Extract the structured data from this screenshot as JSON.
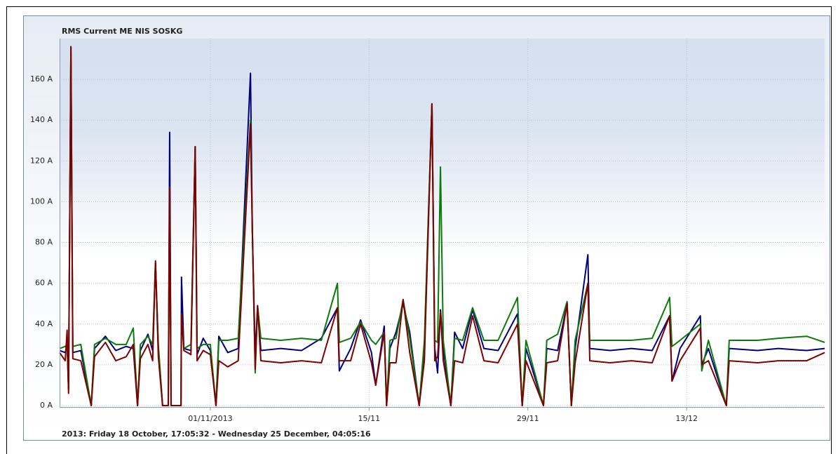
{
  "chart_data": {
    "type": "line",
    "title": "RMS Current ME NIS SOSKG",
    "footer": "2013: Friday 18 October, 17:05:32 - Wednesday 25 December, 04:05:16",
    "x": [
      "2013-10-18T17:05",
      "2013-10-19T05:00",
      "2013-10-19T09:00",
      "2013-10-19T12:00",
      "2013-10-19T17:00",
      "2013-10-19T21:00",
      "2013-10-20T14:00",
      "2013-10-21T12:00",
      "2013-10-21T19:00",
      "2013-10-22T18:00",
      "2013-10-23T16:00",
      "2013-10-24T14:00",
      "2013-10-25T05:00",
      "2013-10-25T14:00",
      "2013-10-25T20:00",
      "2013-10-26T12:00",
      "2013-10-26T22:00",
      "2013-10-27T04:00",
      "2013-10-27T10:00",
      "2013-10-27T19:00",
      "2013-10-28T07:00",
      "2013-10-28T10:00",
      "2013-10-28T13:00",
      "2013-10-29T10:00",
      "2013-10-29T11:00",
      "2013-10-29T16:00",
      "2013-10-30T07:00",
      "2013-10-30T16:00",
      "2013-10-30T20:00",
      "2013-10-31T09:00",
      "2013-11-01T00:00",
      "2013-11-01T12:00",
      "2013-11-01T18:00",
      "2013-11-02T13:00",
      "2013-11-03T11:00",
      "2013-11-04T13:00",
      "2013-11-04T17:00",
      "2013-11-04T23:00",
      "2013-11-05T04:00",
      "2013-11-05T11:00",
      "2013-11-07T05:00",
      "2013-11-09T01:00",
      "2013-11-10T19:00",
      "2013-11-12T05:00",
      "2013-11-12T09:00",
      "2013-11-13T09:00",
      "2013-11-14T06:00",
      "2013-11-15T05:00",
      "2013-11-15T14:00",
      "2013-11-16T08:00",
      "2013-11-16T13:00",
      "2013-11-16T20:00",
      "2013-11-17T09:00",
      "2013-11-18T00:00",
      "2013-11-18T14:00",
      "2013-11-19T10:00",
      "2013-11-19T21:00",
      "2013-11-20T13:00",
      "2013-11-20T19:00",
      "2013-11-21T01:00",
      "2013-11-21T07:00",
      "2013-11-21T13:00",
      "2013-11-22T05:00",
      "2013-11-22T13:00",
      "2013-11-23T06:00",
      "2013-11-24T03:00",
      "2013-11-25T03:00",
      "2013-11-26T09:00",
      "2013-11-28T02:00",
      "2013-11-28T12:00",
      "2013-11-28T20:00",
      "2013-11-30T09:00",
      "2013-11-30T16:00",
      "2013-12-01T15:00",
      "2013-12-02T11:00",
      "2013-12-02T20:00",
      "2013-12-03T04:00",
      "2013-12-04T07:00",
      "2013-12-04T11:00",
      "2013-12-06T06:00",
      "2013-12-08T03:00",
      "2013-12-09T23:00",
      "2013-12-11T12:00",
      "2013-12-11T17:00",
      "2013-12-12T10:00",
      "2013-12-14T05:00",
      "2013-12-14T08:00",
      "2013-12-14T22:00",
      "2013-12-16T12:00",
      "2013-12-16T18:00",
      "2013-12-19T06:00",
      "2013-12-21T02:00",
      "2013-12-23T14:00",
      "2013-12-25T04:05"
    ],
    "series": [
      {
        "color": "#00007f",
        "values": [
          27,
          26,
          30,
          8,
          176,
          26,
          27,
          0,
          28,
          34,
          27,
          29,
          28,
          0,
          27,
          35,
          27,
          70,
          28,
          0,
          0,
          134,
          0,
          0,
          63,
          28,
          27,
          127,
          25,
          33,
          27,
          0,
          34,
          26,
          28,
          163,
          85,
          25,
          49,
          27,
          28,
          27,
          33,
          48,
          17,
          28,
          42,
          26,
          10,
          39,
          0,
          28,
          36,
          50,
          36,
          0,
          28,
          148,
          28,
          16,
          47,
          28,
          0,
          36,
          28,
          47,
          28,
          27,
          45,
          0,
          28,
          0,
          28,
          27,
          50,
          0,
          28,
          74,
          28,
          27,
          28,
          27,
          44,
          12,
          28,
          44,
          20,
          28,
          0,
          28,
          27,
          28,
          27,
          28
        ]
      },
      {
        "color": "#0b7a0b",
        "values": [
          28,
          29,
          30,
          8,
          170,
          29,
          30,
          0,
          30,
          33,
          30,
          30,
          38,
          0,
          30,
          34,
          30,
          70,
          30,
          0,
          0,
          107,
          0,
          0,
          45,
          28,
          30,
          127,
          28,
          30,
          30,
          0,
          32,
          32,
          33,
          140,
          85,
          16,
          49,
          33,
          32,
          33,
          32,
          60,
          31,
          33,
          41,
          32,
          30,
          36,
          0,
          32,
          33,
          52,
          33,
          0,
          32,
          148,
          32,
          31,
          117,
          32,
          0,
          33,
          32,
          48,
          32,
          32,
          53,
          0,
          32,
          0,
          32,
          35,
          51,
          0,
          32,
          60,
          32,
          32,
          32,
          33,
          53,
          29,
          32,
          40,
          17,
          32,
          0,
          32,
          32,
          33,
          34,
          31
        ]
      },
      {
        "color": "#7f0000",
        "values": [
          26,
          22,
          37,
          6,
          176,
          23,
          22,
          0,
          24,
          31,
          22,
          24,
          30,
          0,
          23,
          30,
          22,
          71,
          24,
          0,
          0,
          107,
          0,
          0,
          45,
          27,
          25,
          127,
          22,
          27,
          25,
          0,
          22,
          19,
          22,
          138,
          85,
          18,
          49,
          22,
          21,
          22,
          21,
          48,
          22,
          22,
          40,
          21,
          10,
          36,
          0,
          21,
          21,
          52,
          26,
          0,
          22,
          148,
          22,
          24,
          46,
          22,
          0,
          22,
          21,
          44,
          22,
          21,
          40,
          0,
          22,
          0,
          21,
          22,
          50,
          0,
          21,
          60,
          22,
          21,
          22,
          21,
          44,
          12,
          22,
          38,
          20,
          22,
          0,
          22,
          21,
          22,
          22,
          26
        ]
      }
    ],
    "xlim": [
      "2013-10-18T17:05:32",
      "2013-12-25T04:05:16"
    ],
    "xticks": [
      {
        "value": "2013-11-01T00:00",
        "label": "01/11/2013"
      },
      {
        "value": "2013-11-15T00:00",
        "label": "15/11"
      },
      {
        "value": "2013-11-29T00:00",
        "label": "29/11"
      },
      {
        "value": "2013-12-13T00:00",
        "label": "13/12"
      }
    ],
    "ylim": [
      0,
      180
    ],
    "yticks": [
      {
        "value": 0,
        "label": "0 A"
      },
      {
        "value": 20,
        "label": "20 A"
      },
      {
        "value": 40,
        "label": "40 A"
      },
      {
        "value": 60,
        "label": "60 A"
      },
      {
        "value": 80,
        "label": "80 A"
      },
      {
        "value": 100,
        "label": "100 A"
      },
      {
        "value": 120,
        "label": "120 A"
      },
      {
        "value": 140,
        "label": "140 A"
      },
      {
        "value": 160,
        "label": "160 A"
      }
    ],
    "grid": true
  }
}
